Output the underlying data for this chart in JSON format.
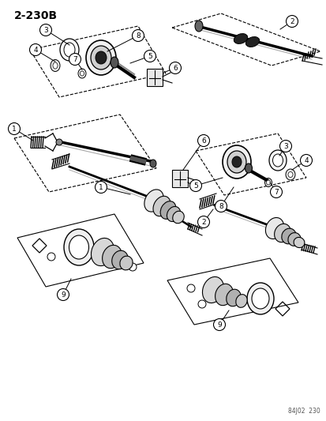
{
  "title": "2-230B",
  "footer": "84J02  230",
  "bg_color": "#ffffff",
  "fig_width": 4.14,
  "fig_height": 5.33,
  "dpi": 100
}
